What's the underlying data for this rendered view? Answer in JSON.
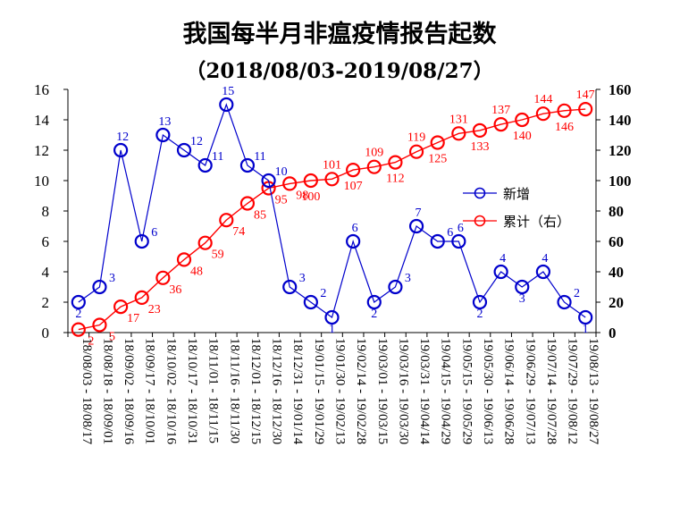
{
  "chart_data": {
    "type": "line",
    "title": "我国每半月非瘟疫情报告起数",
    "subtitle": "（2018/08/03-2019/08/27）",
    "categories": [
      "18/08/03 - 18/08/17",
      "18/08/18 - 18/09/01",
      "18/09/02 - 18/09/16",
      "18/09/17 - 18/10/01",
      "18/10/02 - 18/10/16",
      "18/10/17 - 18/10/31",
      "18/11/01 - 18/11/15",
      "18/11/16 - 18/11/30",
      "18/12/01 - 18/12/15",
      "18/12/16 - 18/12/30",
      "18/12/31 - 19/01/14",
      "19/01/15 - 19/01/29",
      "19/01/30 - 19/02/13",
      "19/02/14 - 19/02/28",
      "19/03/01 - 19/03/15",
      "19/03/16 - 19/03/30",
      "19/03/31 - 19/04/14",
      "19/04/15 - 19/04/29",
      "19/05/15 - 19/05/29",
      "19/05/30 - 19/06/13",
      "19/06/14 - 19/06/28",
      "19/06/29 - 19/07/13",
      "19/07/14 - 19/07/28",
      "19/07/29 - 19/08/12",
      "19/08/13 - 19/08/27"
    ],
    "series": [
      {
        "name": "新增",
        "axis": "left",
        "color": "#0000cc",
        "values": [
          2,
          3,
          12,
          6,
          13,
          12,
          11,
          15,
          11,
          10,
          3,
          2,
          1,
          6,
          2,
          3,
          7,
          6,
          6,
          2,
          4,
          3,
          4,
          2,
          1
        ]
      },
      {
        "name": "累计（右）",
        "axis": "right",
        "color": "#ff0000",
        "values": [
          2,
          5,
          17,
          23,
          36,
          48,
          59,
          74,
          85,
          95,
          98,
          100,
          101,
          107,
          109,
          112,
          119,
          125,
          131,
          133,
          137,
          140,
          144,
          146,
          147
        ]
      }
    ],
    "y_left": {
      "min": 0,
      "max": 16,
      "step": 2,
      "ticks": [
        "0",
        "2",
        "4",
        "6",
        "8",
        "10",
        "12",
        "14",
        "16"
      ]
    },
    "y_right": {
      "min": 0,
      "max": 160,
      "step": 20,
      "ticks": [
        "0",
        "20",
        "40",
        "60",
        "80",
        "100",
        "120",
        "140",
        "160"
      ]
    },
    "legend_position": "right-middle",
    "grid": false
  }
}
